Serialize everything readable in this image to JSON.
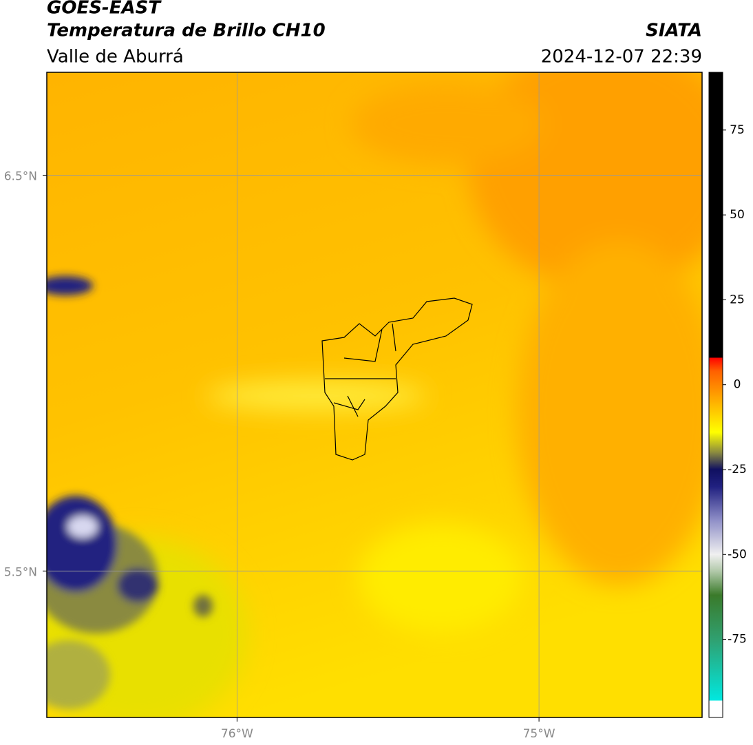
{
  "header": {
    "title": "GOES-EAST",
    "subtitle": "Temperatura de Brillo CH10",
    "region": "Valle de Aburrá",
    "source": "SIATA",
    "timestamp": "2024-12-07 22:39"
  },
  "map": {
    "xlim": [
      -76.63,
      -74.46
    ],
    "ylim": [
      5.13,
      6.76
    ],
    "xticks": [
      {
        "value": -76,
        "label": "76°W"
      },
      {
        "value": -75,
        "label": "75°W"
      }
    ],
    "yticks": [
      {
        "value": 6.5,
        "label": "6.5°N"
      },
      {
        "value": 5.5,
        "label": "5.5°N"
      }
    ],
    "grid": true
  },
  "colorbar": {
    "lim": [
      -98,
      92
    ],
    "ticks": [
      75,
      50,
      25,
      0,
      -25,
      -50,
      -75
    ],
    "stops": [
      {
        "value": -98,
        "color": "#ffffff"
      },
      {
        "value": -93,
        "color": "#ffffff"
      },
      {
        "value": -93,
        "color": "#00e8e0"
      },
      {
        "value": -75,
        "color": "#30a070"
      },
      {
        "value": -62,
        "color": "#3a7a2a"
      },
      {
        "value": -55,
        "color": "#b0c8a8"
      },
      {
        "value": -50,
        "color": "#f0f0f0"
      },
      {
        "value": -40,
        "color": "#9090c8"
      },
      {
        "value": -30,
        "color": "#202080"
      },
      {
        "value": -25,
        "color": "#101060"
      },
      {
        "value": -20,
        "color": "#8a8a40"
      },
      {
        "value": -14,
        "color": "#ffff00"
      },
      {
        "value": -5,
        "color": "#ffb000"
      },
      {
        "value": 4,
        "color": "#ff6000"
      },
      {
        "value": 8,
        "color": "#ff0000"
      },
      {
        "value": 8,
        "color": "#000000"
      },
      {
        "value": 92,
        "color": "#000000"
      }
    ]
  }
}
